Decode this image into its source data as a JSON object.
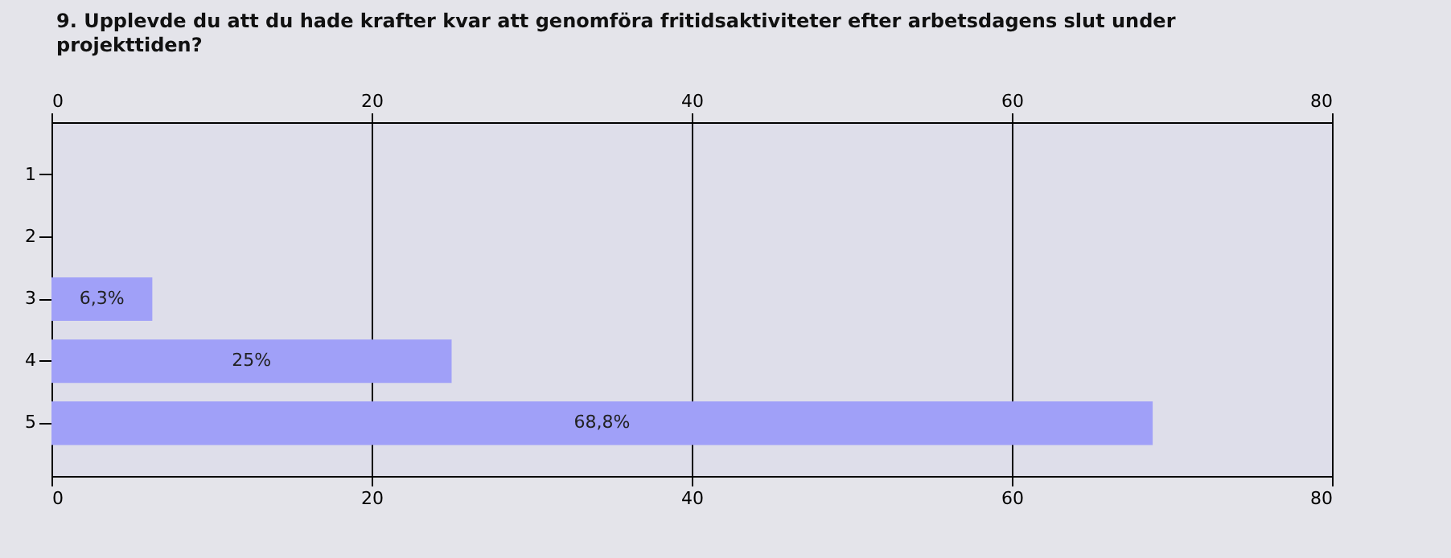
{
  "chart_data": {
    "type": "bar",
    "orientation": "horizontal",
    "title": "9. Upplevde du att du hade krafter kvar att genomföra fritidsaktiviteter efter arbetsdagens slut under projekttiden?",
    "categories": [
      "1",
      "2",
      "3",
      "4",
      "5"
    ],
    "values": [
      null,
      null,
      6.3,
      25,
      68.8
    ],
    "value_labels": [
      null,
      null,
      "6,3%",
      "25%",
      "68,8%"
    ],
    "color": "#a0a0f8",
    "xlim": [
      0,
      80
    ],
    "xticks": [
      0,
      20,
      40,
      60,
      80
    ],
    "x2lim": [
      0,
      80
    ],
    "x2ticks": [
      0,
      20,
      40,
      60,
      80
    ],
    "grid": "x"
  }
}
